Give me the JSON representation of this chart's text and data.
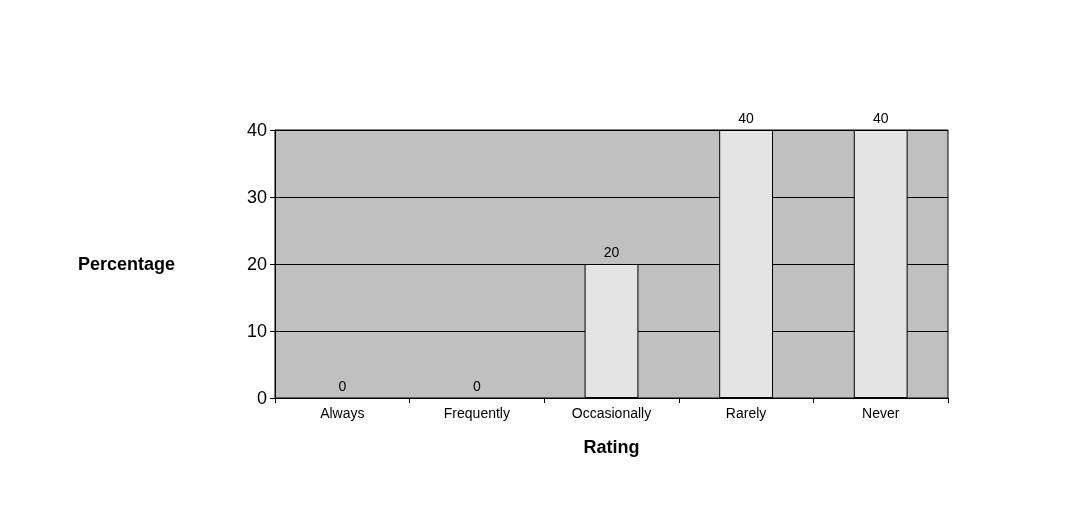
{
  "chart_data": {
    "type": "bar",
    "xlabel": "Rating",
    "ylabel": "Percentage",
    "categories": [
      "Always",
      "Frequently",
      "Occasionally",
      "Rarely",
      "Never"
    ],
    "values": [
      0,
      0,
      20,
      40,
      40
    ],
    "color": "#e4e4e4",
    "ylim": [
      0,
      40
    ],
    "yticks": [
      0,
      10,
      20,
      30,
      40
    ],
    "grid": "y",
    "data_labels": true
  }
}
